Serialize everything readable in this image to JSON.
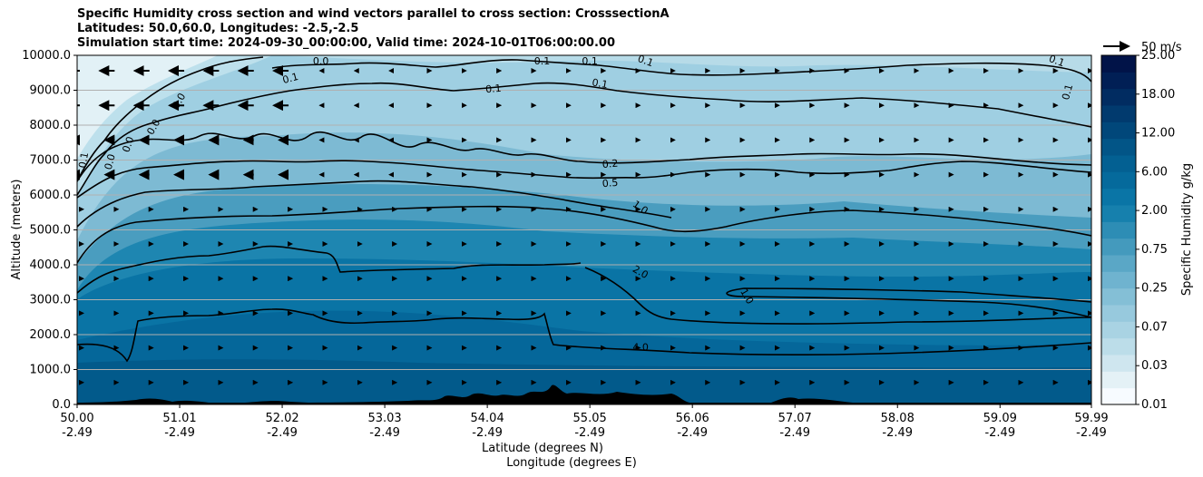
{
  "chart_data": {
    "type": "contourf",
    "title_lines": [
      "Specific Humidity cross section and wind vectors parallel to cross section: CrosssectionA",
      "Latitudes: 50.0,60.0, Longitudes: -2.5,-2.5",
      "Simulation start time: 2024-09-30_00:00:00, Valid time: 2024-10-01T06:00:00.00"
    ],
    "xlabel_lat": "Latitude (degrees N)",
    "xlabel_lon": "Longitude (degrees E)",
    "ylabel": "Altitude (meters)",
    "xlim": [
      50.0,
      59.99
    ],
    "ylim": [
      0,
      10000
    ],
    "x_ticks": [
      {
        "lat": "50.00",
        "lon": "-2.49",
        "value": 50.0
      },
      {
        "lat": "51.01",
        "lon": "-2.49",
        "value": 51.01
      },
      {
        "lat": "52.02",
        "lon": "-2.49",
        "value": 52.02
      },
      {
        "lat": "53.03",
        "lon": "-2.49",
        "value": 53.03
      },
      {
        "lat": "54.04",
        "lon": "-2.49",
        "value": 54.04
      },
      {
        "lat": "55.05",
        "lon": "-2.49",
        "value": 55.05
      },
      {
        "lat": "56.06",
        "lon": "-2.49",
        "value": 56.06
      },
      {
        "lat": "57.07",
        "lon": "-2.49",
        "value": 57.07
      },
      {
        "lat": "58.08",
        "lon": "-2.49",
        "value": 58.08
      },
      {
        "lat": "59.09",
        "lon": "-2.49",
        "value": 59.09
      },
      {
        "lat": "59.99",
        "lon": "-2.49",
        "value": 59.99
      }
    ],
    "y_ticks": [
      {
        "label": "0.0",
        "value": 0
      },
      {
        "label": "1000.0",
        "value": 1000
      },
      {
        "label": "2000.0",
        "value": 2000
      },
      {
        "label": "3000.0",
        "value": 3000
      },
      {
        "label": "4000.0",
        "value": 4000
      },
      {
        "label": "5000.0",
        "value": 5000
      },
      {
        "label": "6000.0",
        "value": 6000
      },
      {
        "label": "7000.0",
        "value": 7000
      },
      {
        "label": "8000.0",
        "value": 8000
      },
      {
        "label": "9000.0",
        "value": 9000
      },
      {
        "label": "10000.0",
        "value": 10000
      }
    ],
    "grid": "horizontal",
    "colorbar": {
      "label": "Specific Humidity g/kg",
      "ticks": [
        "0.01",
        "0.03",
        "0.07",
        "0.25",
        "0.75",
        "2.00",
        "6.00",
        "12.00",
        "18.00",
        "25.00"
      ],
      "colors": [
        "#f7fbff",
        "#e4f1f6",
        "#cfe6ef",
        "#bcdde9",
        "#a9d3e3",
        "#97c9dd",
        "#84bfd6",
        "#6fb3cf",
        "#5aa7c6",
        "#449abd",
        "#2d8db5",
        "#1680ad",
        "#0a75a6",
        "#056a9c",
        "#036092",
        "#025587",
        "#01477a",
        "#013a6e",
        "#012c61",
        "#011f55",
        "#011348"
      ]
    },
    "wind_reference": {
      "label": "50 m/s"
    },
    "contour_labels": [
      {
        "text": "0.0",
        "lat": 52.4,
        "alt": 9850,
        "rot": 0
      },
      {
        "text": "0.1",
        "lat": 52.1,
        "alt": 9350,
        "rot": -15
      },
      {
        "text": "0.0",
        "lat": 51.0,
        "alt": 8700,
        "rot": -60
      },
      {
        "text": "0.0",
        "lat": 50.75,
        "alt": 7950,
        "rot": -60
      },
      {
        "text": "0.0",
        "lat": 50.5,
        "alt": 7450,
        "rot": -70
      },
      {
        "text": "0.0",
        "lat": 50.32,
        "alt": 6950,
        "rot": -75
      },
      {
        "text": "0.1",
        "lat": 50.06,
        "alt": 7000,
        "rot": -80
      },
      {
        "text": "0.1",
        "lat": 54.1,
        "alt": 9050,
        "rot": -5
      },
      {
        "text": "0.1",
        "lat": 55.05,
        "alt": 9850,
        "rot": 0
      },
      {
        "text": "0.1",
        "lat": 55.6,
        "alt": 9850,
        "rot": 20
      },
      {
        "text": "0.1",
        "lat": 55.15,
        "alt": 9200,
        "rot": 10
      },
      {
        "text": "0.1",
        "lat": 59.65,
        "alt": 9850,
        "rot": 20
      },
      {
        "text": "0.1",
        "lat": 59.75,
        "alt": 8950,
        "rot": -75
      },
      {
        "text": "0.1",
        "lat": 54.58,
        "alt": 9850,
        "rot": 0
      },
      {
        "text": "0.2",
        "lat": 55.25,
        "alt": 6900,
        "rot": -5
      },
      {
        "text": "0.5",
        "lat": 55.25,
        "alt": 6350,
        "rot": -5
      },
      {
        "text": "1.0",
        "lat": 55.55,
        "alt": 5650,
        "rot": 35
      },
      {
        "text": "2.0",
        "lat": 55.55,
        "alt": 3800,
        "rot": 30
      },
      {
        "text": "1.0",
        "lat": 56.6,
        "alt": 3100,
        "rot": 60
      },
      {
        "text": "4.0",
        "lat": 55.55,
        "alt": 1650,
        "rot": 0
      }
    ]
  }
}
